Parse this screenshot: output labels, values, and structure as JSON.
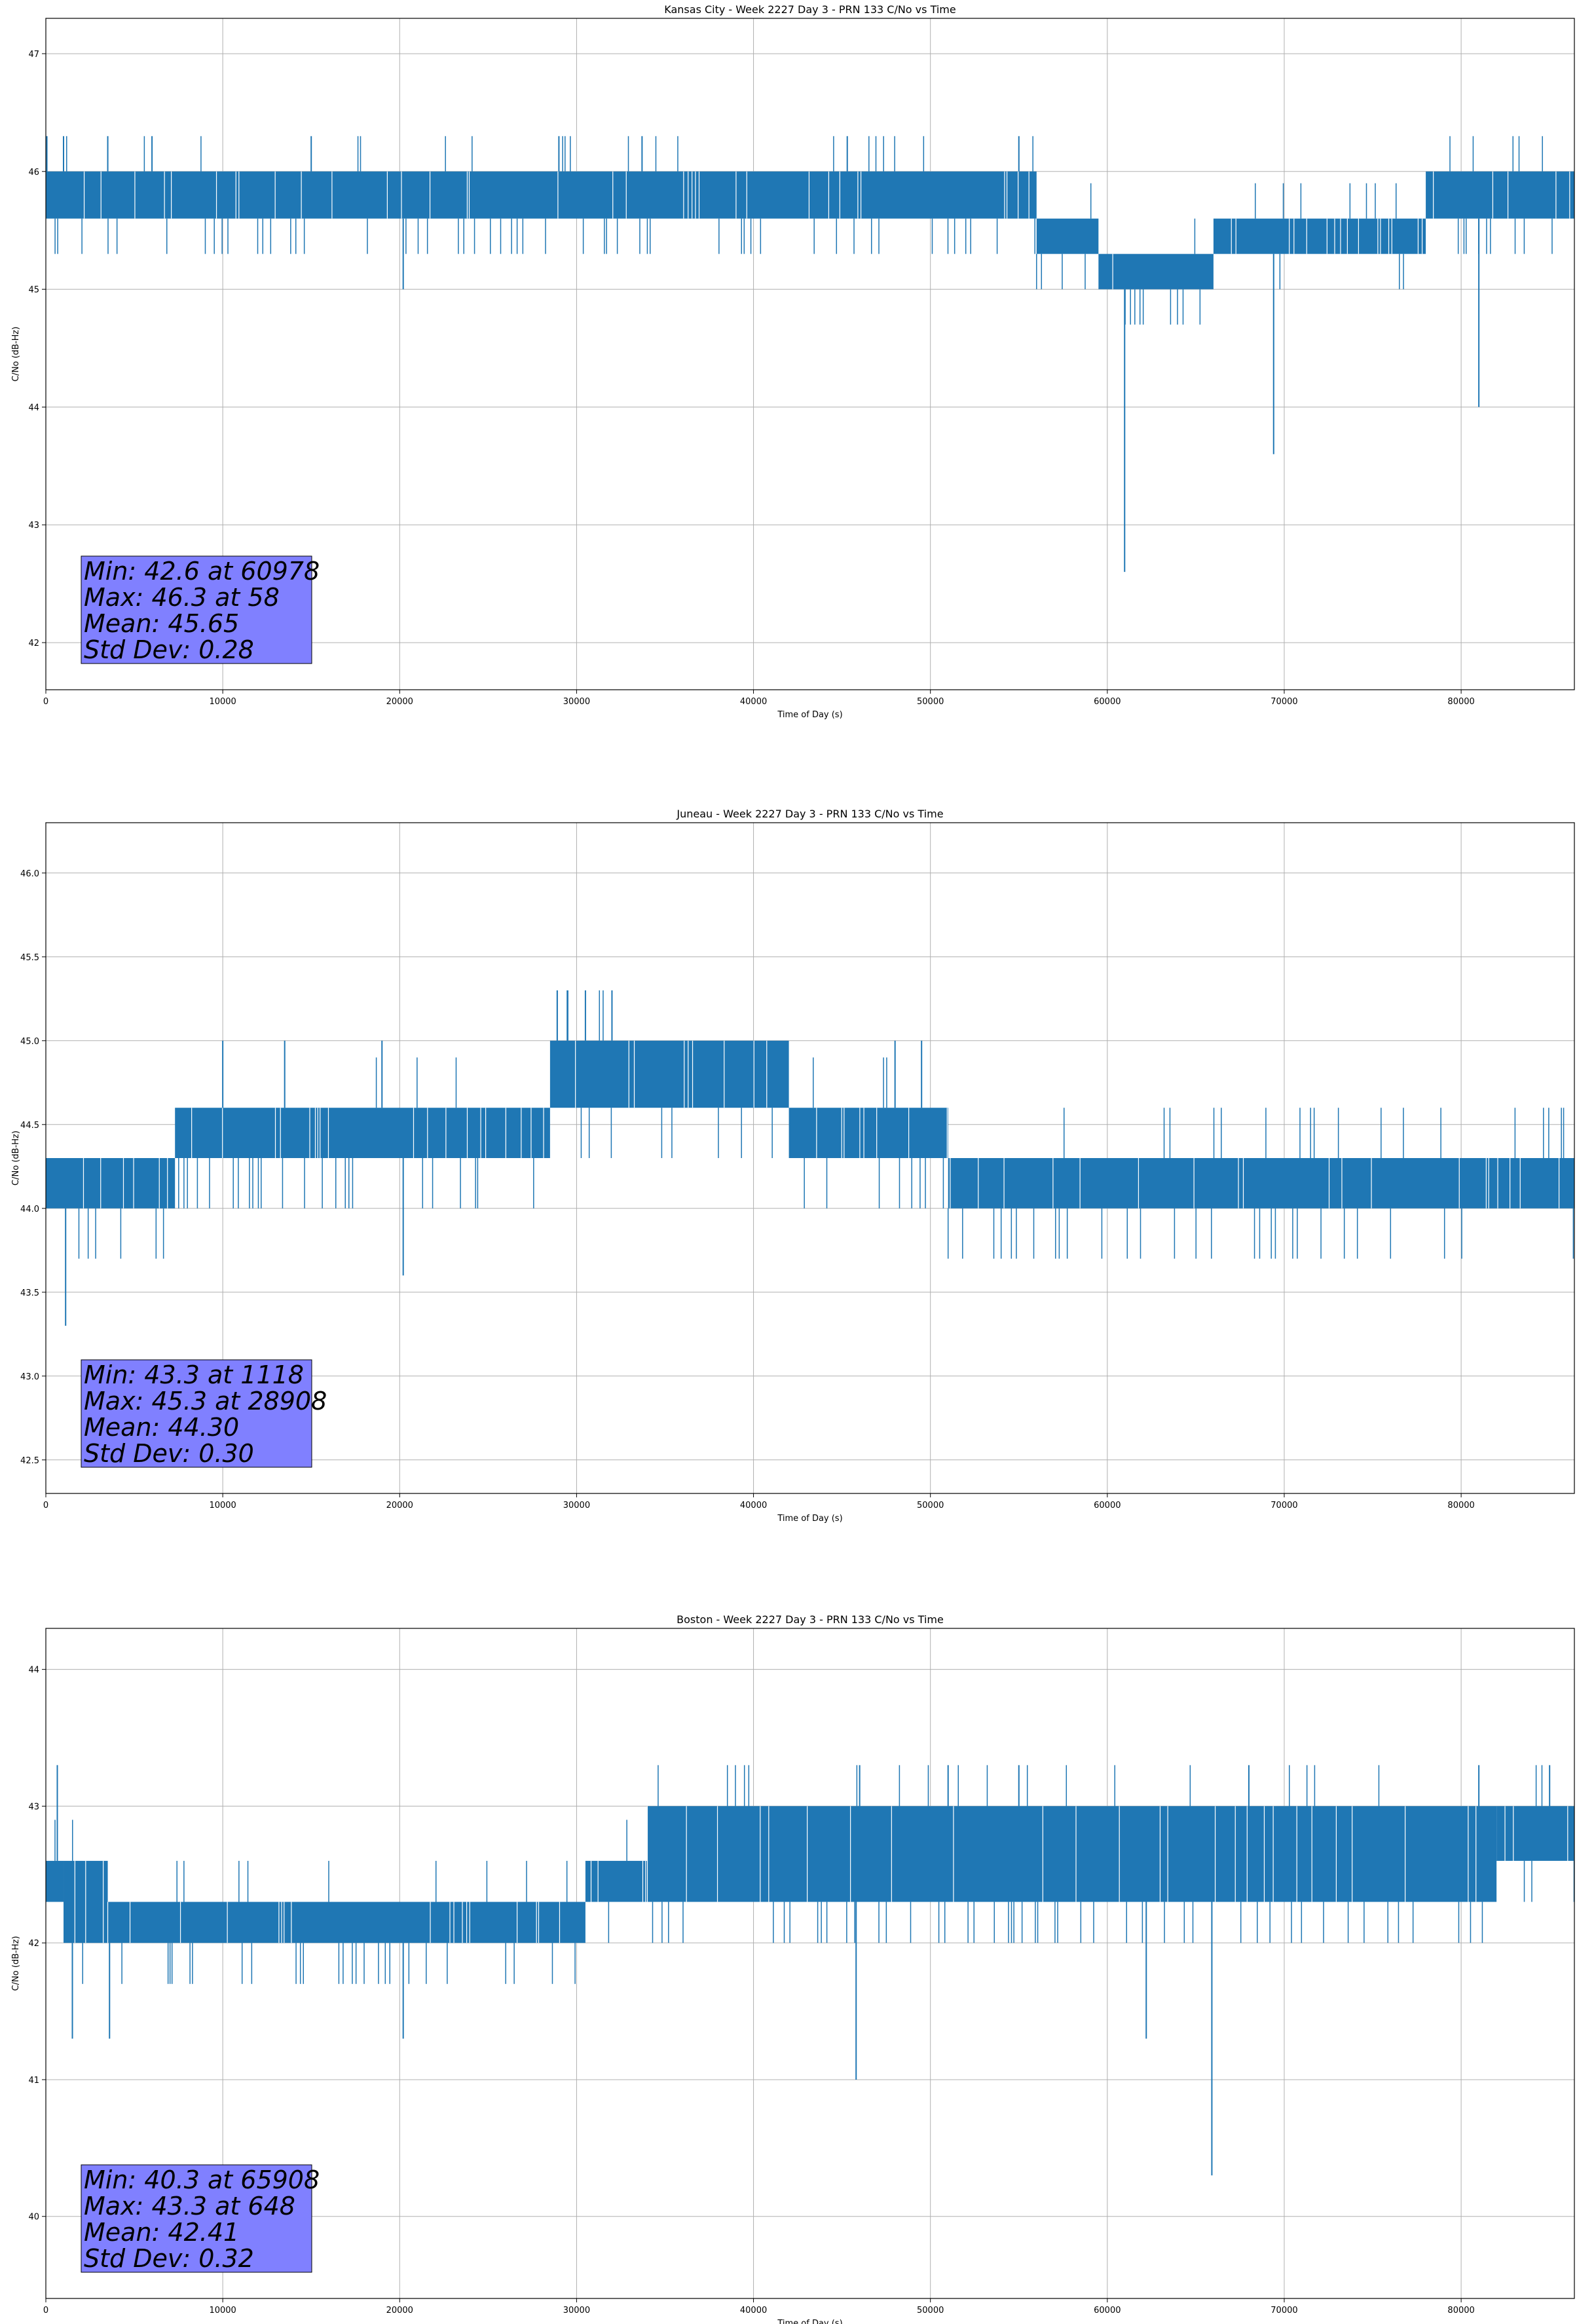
{
  "chart_data": [
    {
      "type": "line",
      "title": "Kansas City - Week 2227 Day 3 - PRN 133 C/No vs Time",
      "xlabel": "Time of Day (s)",
      "ylabel": "C/No (dB-Hz)",
      "xlim": [
        0,
        86400
      ],
      "ylim": [
        41.6,
        47.3
      ],
      "xticks": [
        0,
        10000,
        20000,
        30000,
        40000,
        50000,
        60000,
        70000,
        80000
      ],
      "yticks": [
        42,
        43,
        44,
        45,
        46,
        47
      ],
      "ytick_labels": [
        "42",
        "43",
        "44",
        "45",
        "46",
        "47"
      ],
      "grid": true,
      "color": "#1f77b4",
      "stats": [
        "Min: 42.6 at 60978",
        "Max: 46.3 at 58",
        "Mean: 45.65",
        "Std Dev: 0.28"
      ],
      "bands": [
        {
          "x": [
            0,
            56000
          ],
          "y": [
            45.6,
            46.0
          ]
        },
        {
          "x": [
            56000,
            59500
          ],
          "y": [
            45.3,
            45.6
          ]
        },
        {
          "x": [
            59500,
            66000
          ],
          "y": [
            45.0,
            45.3
          ]
        },
        {
          "x": [
            66000,
            78000
          ],
          "y": [
            45.3,
            45.6
          ]
        },
        {
          "x": [
            78000,
            86400
          ],
          "y": [
            45.6,
            46.0
          ]
        }
      ],
      "spikes": [
        [
          60978,
          42.6
        ],
        [
          69400,
          43.6
        ],
        [
          81000,
          44.0
        ],
        [
          20200,
          45.0
        ],
        [
          58,
          46.3
        ],
        [
          1000,
          46.3
        ],
        [
          3500,
          46.3
        ],
        [
          6000,
          46.3
        ],
        [
          15000,
          46.3
        ],
        [
          29000,
          46.3
        ],
        [
          33700,
          46.3
        ],
        [
          45300,
          46.3
        ],
        [
          55000,
          46.3
        ]
      ]
    },
    {
      "type": "line",
      "title": "Juneau - Week 2227 Day 3 - PRN 133 C/No vs Time",
      "xlabel": "Time of Day (s)",
      "ylabel": "C/No (dB-Hz)",
      "xlim": [
        0,
        86400
      ],
      "ylim": [
        42.3,
        46.3
      ],
      "xticks": [
        0,
        10000,
        20000,
        30000,
        40000,
        50000,
        60000,
        70000,
        80000
      ],
      "yticks": [
        42.5,
        43.0,
        43.5,
        44.0,
        44.5,
        45.0,
        45.5,
        46.0
      ],
      "ytick_labels": [
        "42.5",
        "43.0",
        "43.5",
        "44.0",
        "44.5",
        "45.0",
        "45.5",
        "46.0"
      ],
      "grid": true,
      "color": "#1f77b4",
      "stats": [
        "Min: 43.3 at 1118",
        "Max: 45.3 at 28908",
        "Mean: 44.30",
        "Std Dev: 0.30"
      ],
      "bands": [
        {
          "x": [
            0,
            7300
          ],
          "y": [
            44.0,
            44.3
          ]
        },
        {
          "x": [
            7300,
            26000
          ],
          "y": [
            44.3,
            44.6
          ]
        },
        {
          "x": [
            26000,
            28500
          ],
          "y": [
            44.3,
            44.6
          ]
        },
        {
          "x": [
            28500,
            42000
          ],
          "y": [
            44.6,
            45.0
          ]
        },
        {
          "x": [
            42000,
            51000
          ],
          "y": [
            44.3,
            44.6
          ]
        },
        {
          "x": [
            51000,
            86400
          ],
          "y": [
            44.0,
            44.3
          ]
        }
      ],
      "spikes": [
        [
          1118,
          43.3
        ],
        [
          20200,
          43.6
        ],
        [
          28908,
          45.3
        ],
        [
          29500,
          45.3
        ],
        [
          30500,
          45.3
        ],
        [
          32000,
          45.3
        ],
        [
          10000,
          45.0
        ],
        [
          13500,
          45.0
        ],
        [
          19000,
          45.0
        ],
        [
          48000,
          45.0
        ],
        [
          49500,
          45.0
        ]
      ]
    },
    {
      "type": "line",
      "title": "Boston - Week 2227 Day 3 - PRN 133 C/No vs Time",
      "xlabel": "Time of Day (s)",
      "ylabel": "C/No (dB-Hz)",
      "xlim": [
        0,
        86400
      ],
      "ylim": [
        39.4,
        44.3
      ],
      "xticks": [
        0,
        10000,
        20000,
        30000,
        40000,
        50000,
        60000,
        70000,
        80000
      ],
      "yticks": [
        40,
        41,
        42,
        43,
        44
      ],
      "ytick_labels": [
        "40",
        "41",
        "42",
        "43",
        "44"
      ],
      "grid": true,
      "color": "#1f77b4",
      "stats": [
        "Min: 40.3 at 65908",
        "Max: 43.3 at 648",
        "Mean: 42.41",
        "Std Dev: 0.32"
      ],
      "bands": [
        {
          "x": [
            0,
            1000
          ],
          "y": [
            42.3,
            42.6
          ]
        },
        {
          "x": [
            1000,
            3500
          ],
          "y": [
            42.0,
            42.6
          ]
        },
        {
          "x": [
            3500,
            30500
          ],
          "y": [
            42.0,
            42.3
          ]
        },
        {
          "x": [
            30500,
            34000
          ],
          "y": [
            42.3,
            42.6
          ]
        },
        {
          "x": [
            34000,
            82000
          ],
          "y": [
            42.3,
            43.0
          ]
        },
        {
          "x": [
            82000,
            86400
          ],
          "y": [
            42.6,
            43.0
          ]
        }
      ],
      "spikes": [
        [
          65908,
          40.3
        ],
        [
          45800,
          41.0
        ],
        [
          62200,
          41.3
        ],
        [
          20200,
          41.3
        ],
        [
          3600,
          41.3
        ],
        [
          1500,
          41.3
        ],
        [
          648,
          43.3
        ],
        [
          46000,
          43.3
        ],
        [
          51000,
          43.3
        ],
        [
          55000,
          43.3
        ],
        [
          68000,
          43.3
        ],
        [
          81000,
          43.3
        ],
        [
          85000,
          43.3
        ]
      ]
    }
  ]
}
